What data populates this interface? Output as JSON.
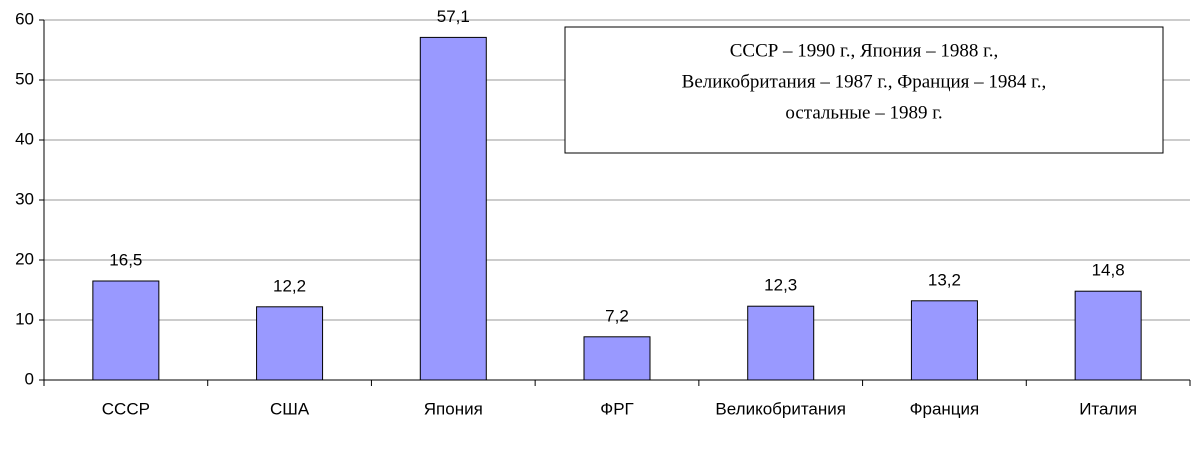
{
  "chart_data": {
    "type": "bar",
    "categories": [
      "СССР",
      "США",
      "Япония",
      "ФРГ",
      "Великобритания",
      "Франция",
      "Италия"
    ],
    "values": [
      16.5,
      12.2,
      57.1,
      7.2,
      12.3,
      13.2,
      14.8
    ],
    "value_labels": [
      "16,5",
      "12,2",
      "57,1",
      "7,2",
      "12,3",
      "13,2",
      "14,8"
    ],
    "color": "#9999ff",
    "ylim": [
      0,
      60
    ],
    "yticks": [
      0,
      10,
      20,
      30,
      40,
      50,
      60
    ],
    "grid": true,
    "annotation": [
      "СССР – 1990 г., Япония – 1988 г.,",
      "Великобритания – 1987 г., Франция – 1984 г.,",
      "остальные – 1989 г."
    ]
  }
}
